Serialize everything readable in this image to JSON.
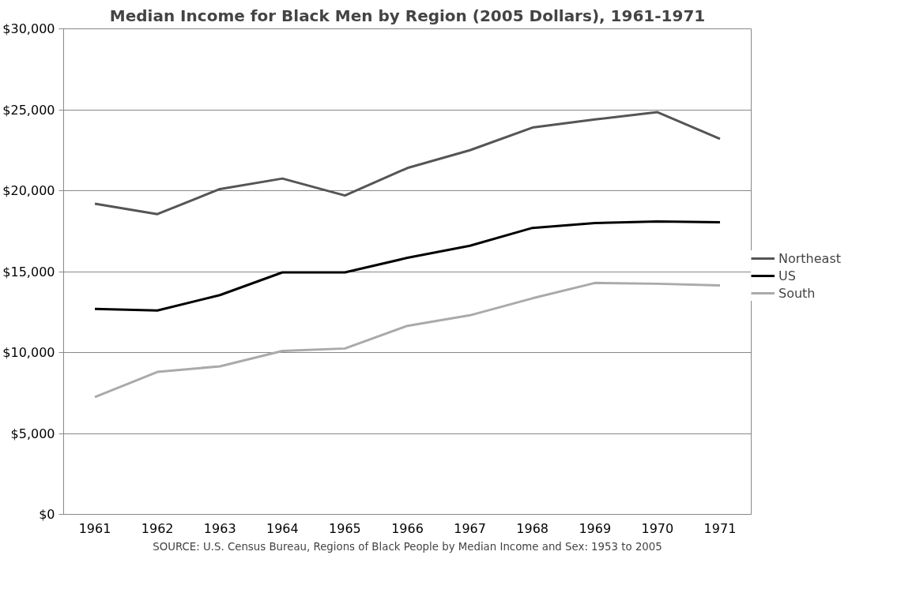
{
  "chart_data": {
    "type": "line",
    "title": "Median Income for Black Men by Region (2005 Dollars), 1961-1971",
    "categories": [
      "1961",
      "1962",
      "1963",
      "1964",
      "1965",
      "1966",
      "1967",
      "1968",
      "1969",
      "1970",
      "1971"
    ],
    "series": [
      {
        "name": "Northeast",
        "color": "#555555",
        "values": [
          19200,
          18550,
          20100,
          20750,
          19700,
          21400,
          22500,
          23900,
          24400,
          24850,
          23200
        ]
      },
      {
        "name": "US",
        "color": "#000000",
        "values": [
          12700,
          12600,
          13550,
          14950,
          14950,
          15850,
          16600,
          17700,
          18000,
          18100,
          18050
        ]
      },
      {
        "name": "South",
        "color": "#aaaaaa",
        "values": [
          7250,
          8800,
          9150,
          10100,
          10250,
          11650,
          12300,
          13350,
          14300,
          14250,
          14150
        ]
      }
    ],
    "ylim": [
      0,
      30000
    ],
    "yticks": [
      {
        "value": 0,
        "label": "$0"
      },
      {
        "value": 5000,
        "label": "$5,000"
      },
      {
        "value": 10000,
        "label": "$10,000"
      },
      {
        "value": 15000,
        "label": "$15,000"
      },
      {
        "value": 20000,
        "label": "$20,000"
      },
      {
        "value": 25000,
        "label": "$25,000"
      },
      {
        "value": 30000,
        "label": "$30,000"
      }
    ],
    "grid": "y",
    "legend": "right",
    "marker": "none",
    "line_style": "solid",
    "annotations": [
      "SOURCE: U.S. Census Bureau, Regions of Black People by Median Income and Sex: 1953 to 2005"
    ]
  }
}
